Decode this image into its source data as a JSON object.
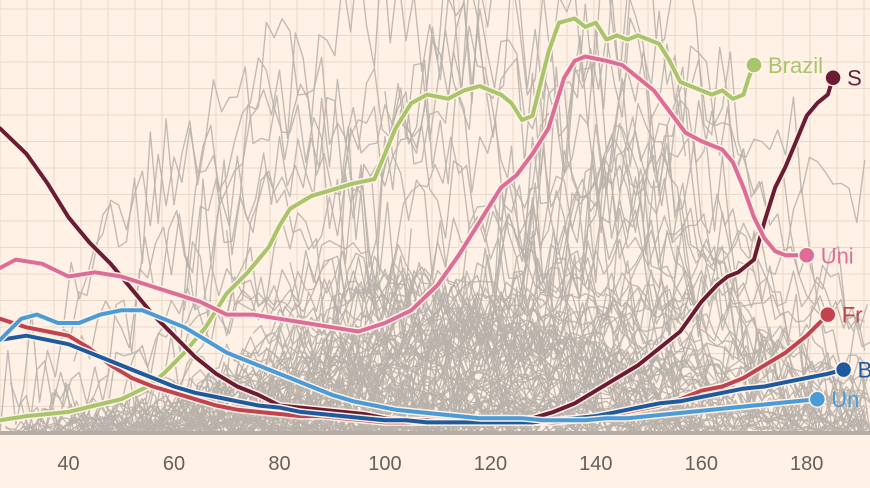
{
  "chart_data": {
    "type": "line",
    "title": "",
    "xlabel": "",
    "ylabel": "",
    "xlim": [
      27,
      192
    ],
    "ylim": [
      0,
      100
    ],
    "x_ticks": [
      "40",
      "60",
      "80",
      "100",
      "120",
      "140",
      "160",
      "180"
    ],
    "grid": true,
    "legend": "inline-end-labels",
    "background_color": "#fff1e5",
    "grid_color": "#ead9c9",
    "baseline_color": "#b5aca5",
    "highlighted_series": [
      {
        "name": "Brazil",
        "color": "#a8c56c",
        "points": [
          [
            27,
            3
          ],
          [
            32,
            4
          ],
          [
            36,
            4.5
          ],
          [
            40,
            5
          ],
          [
            45,
            6.5
          ],
          [
            50,
            8
          ],
          [
            55,
            11
          ],
          [
            58,
            14
          ],
          [
            62,
            19
          ],
          [
            66,
            25
          ],
          [
            70,
            33
          ],
          [
            74,
            38
          ],
          [
            78,
            44
          ],
          [
            80,
            49
          ],
          [
            82,
            53
          ],
          [
            86,
            56
          ],
          [
            90,
            57.5
          ],
          [
            94,
            59
          ],
          [
            98,
            60
          ],
          [
            100,
            66
          ],
          [
            102,
            72
          ],
          [
            105,
            78
          ],
          [
            108,
            80
          ],
          [
            112,
            79
          ],
          [
            115,
            81
          ],
          [
            118,
            82
          ],
          [
            122,
            80
          ],
          [
            124,
            78
          ],
          [
            126,
            74
          ],
          [
            128,
            75
          ],
          [
            129,
            80
          ],
          [
            131,
            90
          ],
          [
            133,
            97
          ],
          [
            136,
            98
          ],
          [
            138,
            96
          ],
          [
            140,
            97
          ],
          [
            142,
            93
          ],
          [
            144,
            94
          ],
          [
            146,
            93
          ],
          [
            148,
            94
          ],
          [
            150,
            93
          ],
          [
            152,
            92
          ],
          [
            154,
            88
          ],
          [
            156,
            83
          ],
          [
            158,
            82
          ],
          [
            160,
            81
          ],
          [
            162,
            80
          ],
          [
            164,
            81
          ],
          [
            166,
            79
          ],
          [
            168,
            80
          ],
          [
            169,
            84
          ],
          [
            170,
            87
          ]
        ]
      },
      {
        "name": "Spain",
        "color": "#6b1c33",
        "points": [
          [
            27,
            72
          ],
          [
            32,
            66
          ],
          [
            36,
            59
          ],
          [
            40,
            51
          ],
          [
            44,
            45
          ],
          [
            48,
            40
          ],
          [
            52,
            34
          ],
          [
            56,
            28
          ],
          [
            60,
            23
          ],
          [
            64,
            18
          ],
          [
            68,
            14
          ],
          [
            72,
            11
          ],
          [
            76,
            9
          ],
          [
            80,
            6.5
          ],
          [
            84,
            6
          ],
          [
            88,
            5.5
          ],
          [
            92,
            5
          ],
          [
            96,
            4.5
          ],
          [
            100,
            3.5
          ],
          [
            104,
            3
          ],
          [
            108,
            3
          ],
          [
            112,
            2.5
          ],
          [
            116,
            2.5
          ],
          [
            120,
            3
          ],
          [
            124,
            3
          ],
          [
            128,
            3.5
          ],
          [
            132,
            5
          ],
          [
            136,
            7
          ],
          [
            140,
            10
          ],
          [
            144,
            13
          ],
          [
            148,
            16
          ],
          [
            152,
            20
          ],
          [
            156,
            24
          ],
          [
            160,
            31
          ],
          [
            163,
            35
          ],
          [
            165,
            37
          ],
          [
            167,
            38
          ],
          [
            170,
            41
          ],
          [
            172,
            50
          ],
          [
            174,
            58
          ],
          [
            176,
            63
          ],
          [
            178,
            69
          ],
          [
            180,
            75
          ],
          [
            182,
            78
          ],
          [
            184,
            80
          ],
          [
            185,
            84
          ]
        ]
      },
      {
        "name": "United Kingdom",
        "color": "#dd6c97",
        "points": [
          [
            27,
            39
          ],
          [
            30,
            41
          ],
          [
            35,
            40
          ],
          [
            40,
            37
          ],
          [
            45,
            38
          ],
          [
            50,
            37
          ],
          [
            55,
            35
          ],
          [
            60,
            33
          ],
          [
            65,
            31
          ],
          [
            70,
            28
          ],
          [
            75,
            28
          ],
          [
            80,
            27
          ],
          [
            85,
            26
          ],
          [
            90,
            25
          ],
          [
            95,
            24
          ],
          [
            100,
            26
          ],
          [
            105,
            29
          ],
          [
            110,
            35
          ],
          [
            114,
            42
          ],
          [
            118,
            50
          ],
          [
            122,
            58
          ],
          [
            125,
            61
          ],
          [
            128,
            66
          ],
          [
            131,
            72
          ],
          [
            134,
            84
          ],
          [
            136,
            88
          ],
          [
            138,
            89
          ],
          [
            142,
            88
          ],
          [
            145,
            87
          ],
          [
            148,
            84
          ],
          [
            151,
            81
          ],
          [
            154,
            76
          ],
          [
            157,
            71
          ],
          [
            160,
            69
          ],
          [
            162,
            68
          ],
          [
            164,
            67
          ],
          [
            166,
            64
          ],
          [
            168,
            58
          ],
          [
            170,
            51
          ],
          [
            172,
            46
          ],
          [
            174,
            43
          ],
          [
            176,
            42
          ],
          [
            180,
            42
          ]
        ]
      },
      {
        "name": "France",
        "color": "#c0434e",
        "points": [
          [
            27,
            27
          ],
          [
            32,
            25
          ],
          [
            36,
            24
          ],
          [
            40,
            23
          ],
          [
            44,
            20
          ],
          [
            48,
            16
          ],
          [
            52,
            13
          ],
          [
            56,
            11
          ],
          [
            60,
            9.5
          ],
          [
            64,
            8
          ],
          [
            68,
            6.5
          ],
          [
            72,
            5.5
          ],
          [
            76,
            5
          ],
          [
            80,
            4.5
          ],
          [
            84,
            4
          ],
          [
            88,
            4
          ],
          [
            92,
            3.5
          ],
          [
            96,
            3
          ],
          [
            100,
            2.5
          ],
          [
            104,
            2.5
          ],
          [
            108,
            2.5
          ],
          [
            112,
            2.5
          ],
          [
            116,
            2.5
          ],
          [
            120,
            2.5
          ],
          [
            124,
            2.5
          ],
          [
            128,
            2.5
          ],
          [
            132,
            2.5
          ],
          [
            136,
            3
          ],
          [
            140,
            3.5
          ],
          [
            144,
            4.5
          ],
          [
            148,
            5.5
          ],
          [
            152,
            6.5
          ],
          [
            156,
            8
          ],
          [
            160,
            10
          ],
          [
            164,
            11
          ],
          [
            168,
            13
          ],
          [
            172,
            16
          ],
          [
            176,
            19
          ],
          [
            180,
            23
          ],
          [
            184,
            28
          ]
        ]
      },
      {
        "name": "Belgium",
        "color": "#1e5aa0",
        "points": [
          [
            27,
            22
          ],
          [
            32,
            23
          ],
          [
            36,
            22
          ],
          [
            40,
            21
          ],
          [
            44,
            19
          ],
          [
            48,
            17
          ],
          [
            52,
            15
          ],
          [
            56,
            13
          ],
          [
            60,
            11
          ],
          [
            64,
            9.5
          ],
          [
            68,
            8.5
          ],
          [
            72,
            7.5
          ],
          [
            76,
            6.5
          ],
          [
            80,
            6
          ],
          [
            84,
            5
          ],
          [
            88,
            4.5
          ],
          [
            92,
            4
          ],
          [
            96,
            3.5
          ],
          [
            100,
            3
          ],
          [
            104,
            3
          ],
          [
            108,
            2.5
          ],
          [
            112,
            2.5
          ],
          [
            116,
            2.5
          ],
          [
            120,
            2.5
          ],
          [
            124,
            2.5
          ],
          [
            128,
            2.5
          ],
          [
            132,
            3
          ],
          [
            136,
            3.5
          ],
          [
            140,
            4
          ],
          [
            144,
            5
          ],
          [
            148,
            6
          ],
          [
            152,
            7
          ],
          [
            156,
            7.5
          ],
          [
            160,
            8.5
          ],
          [
            164,
            9.5
          ],
          [
            168,
            10.5
          ],
          [
            172,
            11
          ],
          [
            176,
            12
          ],
          [
            180,
            13
          ],
          [
            184,
            14
          ],
          [
            187,
            15
          ]
        ]
      },
      {
        "name": "United States",
        "color": "#4a9bd8",
        "points": [
          [
            27,
            22
          ],
          [
            31,
            27
          ],
          [
            34,
            28
          ],
          [
            38,
            26
          ],
          [
            42,
            26
          ],
          [
            46,
            28
          ],
          [
            50,
            29
          ],
          [
            54,
            29
          ],
          [
            58,
            27
          ],
          [
            62,
            25
          ],
          [
            66,
            22
          ],
          [
            70,
            19
          ],
          [
            74,
            17
          ],
          [
            78,
            15
          ],
          [
            82,
            13
          ],
          [
            86,
            11
          ],
          [
            90,
            9
          ],
          [
            94,
            7.5
          ],
          [
            98,
            6.5
          ],
          [
            102,
            5.5
          ],
          [
            106,
            5
          ],
          [
            110,
            4.5
          ],
          [
            114,
            4
          ],
          [
            118,
            3.5
          ],
          [
            122,
            3.5
          ],
          [
            126,
            3.5
          ],
          [
            130,
            3
          ],
          [
            134,
            3
          ],
          [
            138,
            3
          ],
          [
            142,
            3.5
          ],
          [
            146,
            3.5
          ],
          [
            150,
            4
          ],
          [
            154,
            4.5
          ],
          [
            158,
            5
          ],
          [
            162,
            5.5
          ],
          [
            166,
            6
          ],
          [
            170,
            6.5
          ],
          [
            174,
            7
          ],
          [
            178,
            7.5
          ],
          [
            182,
            8
          ]
        ]
      }
    ],
    "end_labels": {
      "Brazil": "Brazil",
      "Spain": "S",
      "United Kingdom": "Uni",
      "France": "Fr",
      "Belgium": "B",
      "United States": "Un"
    },
    "background_series_color": "#b9b1aa",
    "background_series_count": 110
  }
}
